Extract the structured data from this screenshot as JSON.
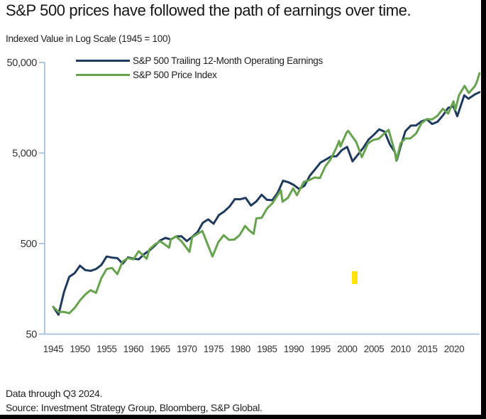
{
  "header": {
    "title": "S&P 500 prices have followed the path of earnings over time."
  },
  "chart": {
    "axis_note": "Indexed Value in Log Scale (1945 = 100)",
    "axis_color": "#a6c1de",
    "tick_text_color": "#333333",
    "marker_color": "#ffe30a",
    "y_tick_labels": [
      "50,000",
      "5,000",
      "500",
      "50"
    ],
    "y_tick_values": [
      50000,
      5000,
      500,
      50
    ],
    "x_tick_labels": [
      "1945",
      "1950",
      "1955",
      "1960",
      "1965",
      "1970",
      "1975",
      "1980",
      "1985",
      "1990",
      "1995",
      "2000",
      "2005",
      "2010",
      "2015",
      "2020"
    ],
    "x_tick_values": [
      1945,
      1950,
      1955,
      1960,
      1965,
      1970,
      1975,
      1980,
      1985,
      1990,
      1995,
      2000,
      2005,
      2010,
      2015,
      2020
    ]
  },
  "legend": {
    "items": [
      {
        "label": "S&P 500 Trailing 12-Month Operating Earnings",
        "color": "#1e3a5f"
      },
      {
        "label": "S&P 500 Price Index",
        "color": "#66a34d"
      }
    ]
  },
  "footer": {
    "line1": "Data through Q3 2024.",
    "line2": "Source: Investment Strategy Group, Bloomberg, S&P Global."
  },
  "chart_data": {
    "type": "line",
    "title": "S&P 500 prices have followed the path of earnings over time.",
    "ylabel": "Indexed Value in Log Scale (1945 = 100)",
    "y_scale": "log",
    "ylim": [
      50,
      50000
    ],
    "xlim": [
      1945,
      2024.75
    ],
    "grid": false,
    "legend_position": "top-left-inside",
    "series": [
      {
        "name": "S&P 500 Trailing 12-Month Operating Earnings",
        "color": "#1e3a5f",
        "points": [
          [
            1945,
            100
          ],
          [
            1946,
            82
          ],
          [
            1947,
            145
          ],
          [
            1948,
            215
          ],
          [
            1949,
            235
          ],
          [
            1950,
            285
          ],
          [
            1951,
            255
          ],
          [
            1952,
            250
          ],
          [
            1953,
            262
          ],
          [
            1954,
            290
          ],
          [
            1955,
            360
          ],
          [
            1956,
            350
          ],
          [
            1957,
            345
          ],
          [
            1958,
            300
          ],
          [
            1959,
            352
          ],
          [
            1960,
            341
          ],
          [
            1961,
            335
          ],
          [
            1962,
            382
          ],
          [
            1963,
            419
          ],
          [
            1964,
            474
          ],
          [
            1965,
            541
          ],
          [
            1966,
            578
          ],
          [
            1967,
            555
          ],
          [
            1968,
            600
          ],
          [
            1969,
            602
          ],
          [
            1970,
            534
          ],
          [
            1971,
            594
          ],
          [
            1972,
            669
          ],
          [
            1973,
            850
          ],
          [
            1974,
            926
          ],
          [
            1975,
            829
          ],
          [
            1976,
            1032
          ],
          [
            1977,
            1134
          ],
          [
            1978,
            1284
          ],
          [
            1979,
            1548
          ],
          [
            1980,
            1544
          ],
          [
            1981,
            1600
          ],
          [
            1982,
            1317
          ],
          [
            1983,
            1461
          ],
          [
            1984,
            1733
          ],
          [
            1985,
            1522
          ],
          [
            1986,
            1508
          ],
          [
            1987,
            1823
          ],
          [
            1988,
            2474
          ],
          [
            1989,
            2382
          ],
          [
            1990,
            2223
          ],
          [
            1991,
            2010
          ],
          [
            1992,
            2174
          ],
          [
            1993,
            2802
          ],
          [
            1994,
            3307
          ],
          [
            1995,
            3927
          ],
          [
            1996,
            4232
          ],
          [
            1997,
            4584
          ],
          [
            1998,
            4611
          ],
          [
            1999,
            5383
          ],
          [
            2000,
            5847
          ],
          [
            2001,
            4047
          ],
          [
            2002,
            4796
          ],
          [
            2003,
            5697
          ],
          [
            2004,
            7050
          ],
          [
            2005,
            7964
          ],
          [
            2006,
            9138
          ],
          [
            2007,
            8598
          ],
          [
            2008,
            6200
          ],
          [
            2008.9,
            5157
          ],
          [
            2009.3,
            4200
          ],
          [
            2010,
            5923
          ],
          [
            2010.9,
            8726
          ],
          [
            2011.9,
            10046
          ],
          [
            2012.9,
            10085
          ],
          [
            2013.9,
            11177
          ],
          [
            2014.9,
            11772
          ],
          [
            2015.9,
            10464
          ],
          [
            2016.9,
            11069
          ],
          [
            2017.9,
            12970
          ],
          [
            2018.9,
            15792
          ],
          [
            2019.9,
            16367
          ],
          [
            2020.6,
            12747
          ],
          [
            2021.9,
            21689
          ],
          [
            2022.7,
            19900
          ],
          [
            2023.9,
            22243
          ],
          [
            2024.75,
            23500
          ]
        ]
      },
      {
        "name": "S&P 500 Price Index",
        "color": "#66a34d",
        "points": [
          [
            1945,
            100
          ],
          [
            1946,
            88
          ],
          [
            1947,
            88
          ],
          [
            1948,
            85
          ],
          [
            1949,
            97
          ],
          [
            1950,
            118
          ],
          [
            1951,
            137
          ],
          [
            1952,
            153
          ],
          [
            1953,
            143
          ],
          [
            1954,
            207
          ],
          [
            1955,
            262
          ],
          [
            1956,
            269
          ],
          [
            1957,
            230
          ],
          [
            1958,
            318
          ],
          [
            1959,
            345
          ],
          [
            1960,
            335
          ],
          [
            1961,
            412
          ],
          [
            1962.5,
            340
          ],
          [
            1963,
            432
          ],
          [
            1964,
            488
          ],
          [
            1965,
            532
          ],
          [
            1966.7,
            450
          ],
          [
            1967,
            556
          ],
          [
            1968,
            598
          ],
          [
            1969,
            530
          ],
          [
            1970.5,
            405
          ],
          [
            1971,
            588
          ],
          [
            1972.9,
            690
          ],
          [
            1973.5,
            560
          ],
          [
            1974.8,
            360
          ],
          [
            1975.9,
            520
          ],
          [
            1976.9,
            619
          ],
          [
            1977.9,
            548
          ],
          [
            1978.9,
            554
          ],
          [
            1979.9,
            622
          ],
          [
            1980.9,
            782
          ],
          [
            1981.6,
            706
          ],
          [
            1982.5,
            640
          ],
          [
            1983,
            950
          ],
          [
            1984,
            963
          ],
          [
            1985,
            1217
          ],
          [
            1986,
            1395
          ],
          [
            1987.6,
            1941
          ],
          [
            1987.9,
            1450
          ],
          [
            1988.9,
            1600
          ],
          [
            1989.9,
            2036
          ],
          [
            1990.6,
            1710
          ],
          [
            1991.9,
            2403
          ],
          [
            1992.9,
            2510
          ],
          [
            1993.9,
            2687
          ],
          [
            1994.9,
            2646
          ],
          [
            1995.9,
            3548
          ],
          [
            1996.9,
            4267
          ],
          [
            1997.9,
            5590
          ],
          [
            1998.5,
            6800
          ],
          [
            1998.75,
            5900
          ],
          [
            1999.9,
            8464
          ],
          [
            2000.2,
            8800
          ],
          [
            2001.7,
            6613
          ],
          [
            2002.75,
            4500
          ],
          [
            2003.9,
            6405
          ],
          [
            2004.9,
            6981
          ],
          [
            2005.9,
            7191
          ],
          [
            2006.9,
            8170
          ],
          [
            2007.75,
            9015
          ],
          [
            2008.9,
            5203
          ],
          [
            2009.2,
            4100
          ],
          [
            2010,
            6423
          ],
          [
            2010.9,
            7244
          ],
          [
            2011.8,
            7244
          ],
          [
            2012.9,
            8215
          ],
          [
            2013.9,
            10647
          ],
          [
            2014.9,
            11860
          ],
          [
            2015.9,
            11774
          ],
          [
            2016.9,
            12896
          ],
          [
            2017.9,
            15401
          ],
          [
            2018.9,
            13650
          ],
          [
            2019.9,
            18610
          ],
          [
            2020.25,
            15000
          ],
          [
            2020.9,
            21636
          ],
          [
            2021.97,
            27600
          ],
          [
            2022.75,
            23000
          ],
          [
            2023.9,
            27476
          ],
          [
            2024.3,
            31000
          ],
          [
            2024.75,
            38000
          ]
        ]
      }
    ]
  }
}
